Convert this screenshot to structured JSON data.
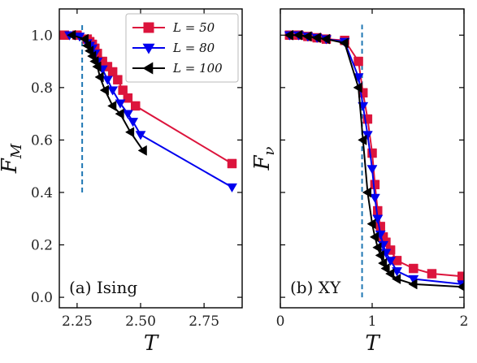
{
  "chart_data": [
    {
      "type": "line",
      "panel_label": "(a) Ising",
      "xlabel": "T",
      "ylabel": "F_M",
      "ylabel_base": "F",
      "ylabel_sub": "M",
      "xlim": [
        2.18,
        2.9
      ],
      "ylim": [
        -0.04,
        1.1
      ],
      "xticks": [
        2.25,
        2.5,
        2.75
      ],
      "xtick_labels": [
        "2.25",
        "2.50",
        "2.75"
      ],
      "yticks": [
        0.0,
        0.2,
        0.4,
        0.6,
        0.8,
        1.0
      ],
      "ytick_labels": [
        "0.0",
        "0.2",
        "0.4",
        "0.6",
        "0.8",
        "1.0"
      ],
      "critical_line": {
        "x": 2.27,
        "y_range": [
          0.4,
          1.04
        ]
      },
      "legend_position": "top-right",
      "series": [
        {
          "name": "L = 50",
          "color": "#dc143c",
          "marker": "square",
          "x": [
            2.2,
            2.25,
            2.29,
            2.3,
            2.31,
            2.32,
            2.33,
            2.35,
            2.37,
            2.39,
            2.41,
            2.43,
            2.45,
            2.48,
            2.86
          ],
          "y": [
            1.0,
            1.0,
            0.985,
            0.975,
            0.965,
            0.95,
            0.93,
            0.9,
            0.88,
            0.86,
            0.83,
            0.79,
            0.76,
            0.73,
            0.51
          ]
        },
        {
          "name": "L = 80",
          "color": "#0000ee",
          "marker": "triangle-down",
          "x": [
            2.22,
            2.26,
            2.29,
            2.3,
            2.31,
            2.32,
            2.33,
            2.35,
            2.37,
            2.39,
            2.42,
            2.45,
            2.47,
            2.5,
            2.86
          ],
          "y": [
            1.0,
            0.995,
            0.97,
            0.96,
            0.95,
            0.93,
            0.9,
            0.87,
            0.83,
            0.79,
            0.74,
            0.7,
            0.67,
            0.62,
            0.42
          ]
        },
        {
          "name": "L = 100",
          "color": "#000000",
          "marker": "triangle-left",
          "x": [
            2.23,
            2.28,
            2.29,
            2.3,
            2.31,
            2.32,
            2.33,
            2.34,
            2.36,
            2.39,
            2.42,
            2.46,
            2.51
          ],
          "y": [
            1.0,
            0.985,
            0.96,
            0.94,
            0.92,
            0.9,
            0.88,
            0.84,
            0.79,
            0.73,
            0.7,
            0.63,
            0.56
          ]
        }
      ]
    },
    {
      "type": "line",
      "panel_label": "(b) XY",
      "xlabel": "T",
      "ylabel": "F_ν",
      "ylabel_base": "F",
      "ylabel_sub": "ν",
      "xlim": [
        0,
        2
      ],
      "ylim": [
        -0.04,
        1.1
      ],
      "xticks": [
        0,
        1,
        2
      ],
      "xtick_labels": [
        "0",
        "1",
        "2"
      ],
      "yticks": [
        0.0,
        0.2,
        0.4,
        0.6,
        0.8,
        1.0
      ],
      "ytick_labels": [],
      "critical_line": {
        "x": 0.89,
        "y_range": [
          0.0,
          1.04
        ]
      },
      "series": [
        {
          "name": "L = 50",
          "color": "#dc143c",
          "marker": "square",
          "x": [
            0.1,
            0.2,
            0.3,
            0.4,
            0.5,
            0.7,
            0.85,
            0.9,
            0.95,
            1.0,
            1.03,
            1.06,
            1.09,
            1.12,
            1.15,
            1.2,
            1.27,
            1.45,
            1.65,
            1.98
          ],
          "y": [
            1.0,
            1.0,
            0.995,
            0.99,
            0.985,
            0.98,
            0.9,
            0.78,
            0.68,
            0.55,
            0.43,
            0.33,
            0.27,
            0.23,
            0.21,
            0.18,
            0.14,
            0.11,
            0.09,
            0.08
          ]
        },
        {
          "name": "L = 80",
          "color": "#0000ee",
          "marker": "triangle-down",
          "x": [
            0.1,
            0.2,
            0.3,
            0.4,
            0.5,
            0.7,
            0.85,
            0.9,
            0.95,
            1.0,
            1.03,
            1.06,
            1.09,
            1.12,
            1.15,
            1.2,
            1.27,
            1.45,
            1.98
          ],
          "y": [
            1.0,
            1.0,
            0.995,
            0.99,
            0.985,
            0.975,
            0.84,
            0.73,
            0.62,
            0.49,
            0.38,
            0.3,
            0.24,
            0.2,
            0.17,
            0.14,
            0.1,
            0.07,
            0.05
          ]
        },
        {
          "name": "L = 100",
          "color": "#000000",
          "marker": "triangle-left",
          "x": [
            0.1,
            0.2,
            0.3,
            0.4,
            0.5,
            0.7,
            0.85,
            0.9,
            0.95,
            1.0,
            1.03,
            1.06,
            1.09,
            1.12,
            1.15,
            1.2,
            1.27,
            1.45,
            1.98
          ],
          "y": [
            1.0,
            1.0,
            0.995,
            0.99,
            0.985,
            0.97,
            0.8,
            0.6,
            0.4,
            0.28,
            0.23,
            0.19,
            0.16,
            0.13,
            0.11,
            0.09,
            0.07,
            0.05,
            0.04
          ]
        }
      ]
    }
  ]
}
